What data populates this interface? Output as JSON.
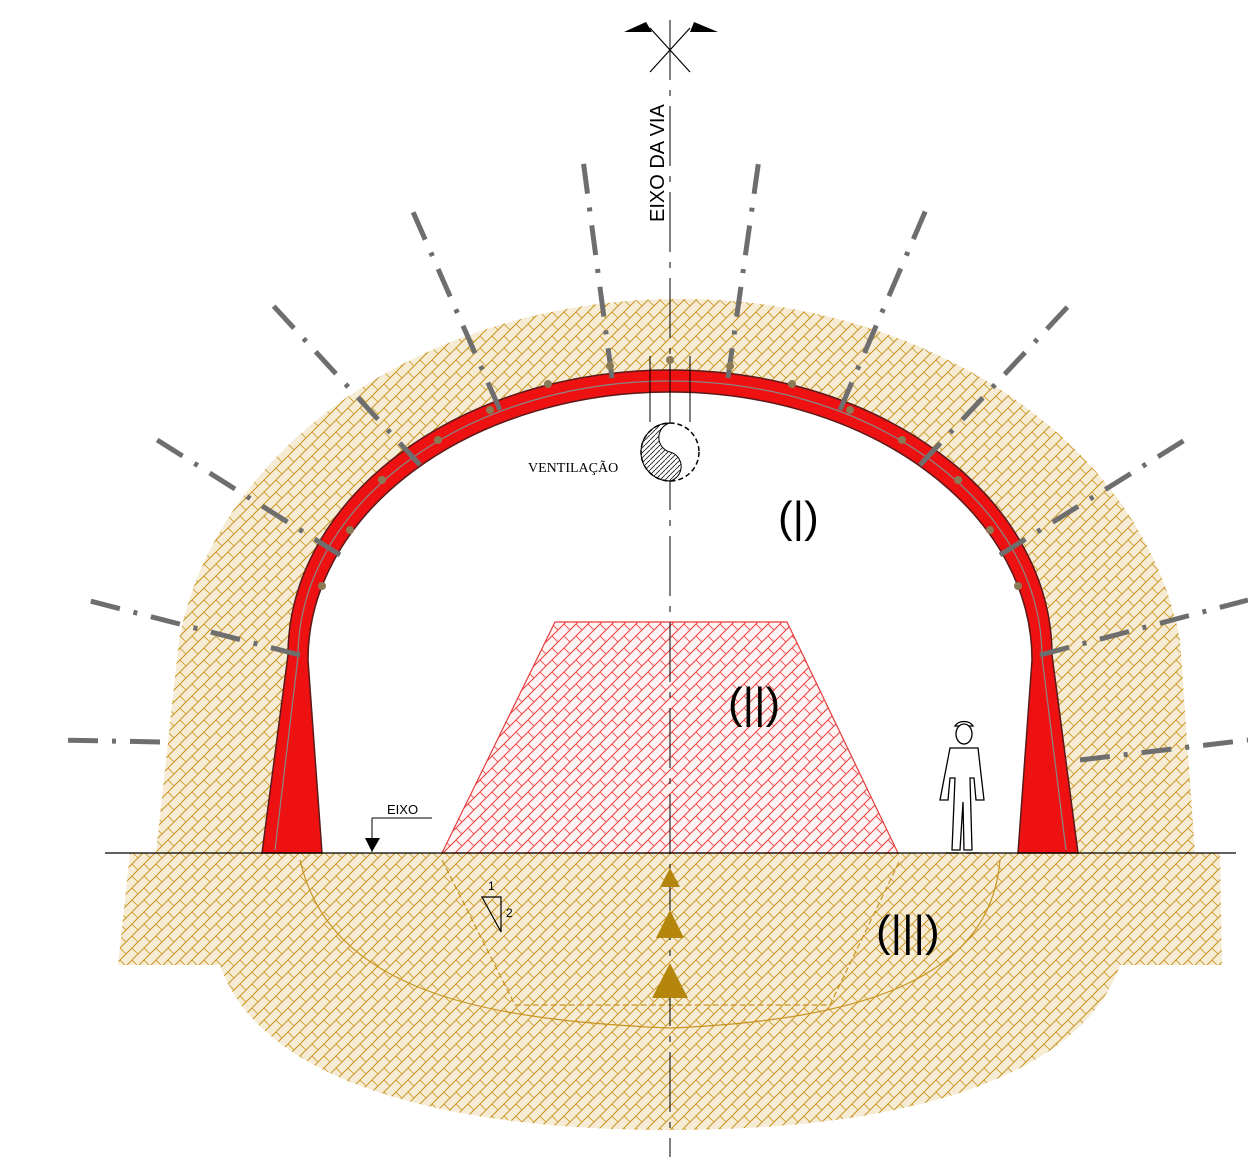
{
  "diagram": {
    "axis_label": "EIXO DA VIA",
    "ventilation_label": "VENTILAÇÃO",
    "level_label": "EIXO",
    "phase_labels": [
      "(|)",
      "(||)",
      "(|||)"
    ],
    "slope": {
      "rise": "1",
      "run": "2"
    },
    "colors": {
      "soil": "#c8941e",
      "soil_fill": "#f6ecd6",
      "lining": "#ee1111",
      "bench": "#e63c3c",
      "bolt": "#6e6e6e",
      "drain_arrow": "#b5860c"
    }
  }
}
